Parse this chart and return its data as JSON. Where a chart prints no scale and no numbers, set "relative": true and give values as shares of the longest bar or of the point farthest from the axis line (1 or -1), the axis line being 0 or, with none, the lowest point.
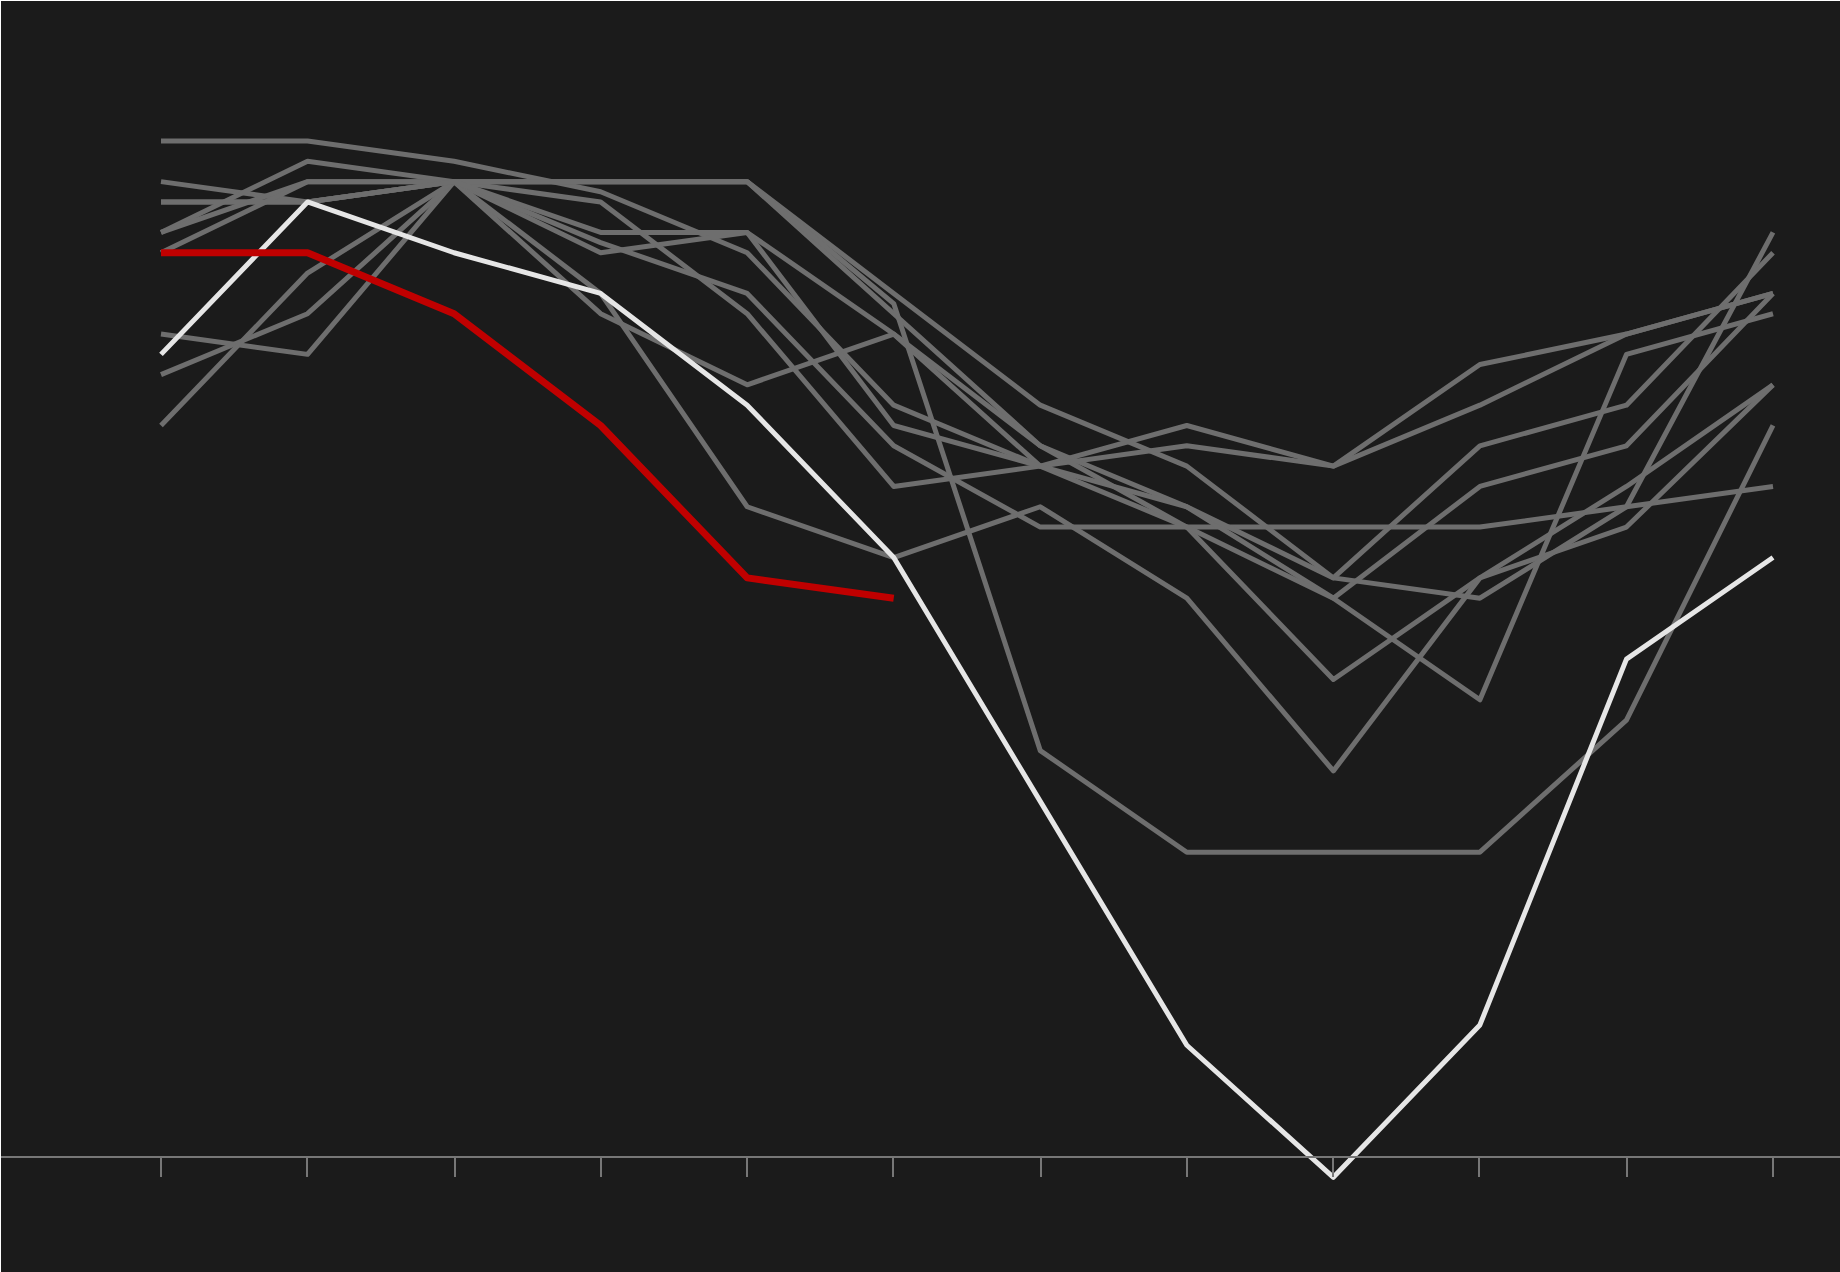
{
  "chart_data": {
    "type": "line",
    "relative": true,
    "grid": false,
    "categories": [
      null,
      null,
      null,
      null,
      null,
      null,
      null,
      null,
      null,
      null,
      null,
      null
    ],
    "series": [
      {
        "color": "#6e6e6e",
        "values": [
          1.0,
          1.0,
          0.98,
          0.95,
          0.89,
          0.74,
          0.68,
          0.62,
          0.62,
          0.62,
          0.64,
          0.66
        ]
      },
      {
        "color": "#6e6e6e",
        "values": [
          0.96,
          0.94,
          0.96,
          0.89,
          0.91,
          0.81,
          0.68,
          0.72,
          0.68,
          0.78,
          0.81,
          0.85
        ]
      },
      {
        "color": "#6e6e6e",
        "values": [
          0.94,
          0.94,
          0.96,
          0.96,
          0.96,
          0.85,
          0.74,
          0.68,
          0.57,
          0.7,
          0.74,
          0.89
        ]
      },
      {
        "color": "#6e6e6e",
        "values": [
          0.91,
          0.98,
          0.96,
          0.96,
          0.96,
          0.83,
          0.7,
          0.64,
          0.55,
          0.66,
          0.7,
          0.85
        ]
      },
      {
        "color": "#6e6e6e",
        "values": [
          0.81,
          0.79,
          0.96,
          0.83,
          0.76,
          0.81,
          0.7,
          0.62,
          0.47,
          0.57,
          0.62,
          0.76
        ]
      },
      {
        "color": "#6e6e6e",
        "values": [
          0.77,
          0.83,
          0.96,
          0.94,
          0.83,
          0.66,
          0.68,
          0.7,
          0.68,
          0.74,
          0.81,
          0.85
        ]
      },
      {
        "color": "#6e6e6e",
        "values": [
          0.72,
          0.87,
          0.96,
          0.85,
          0.64,
          0.59,
          0.64,
          0.55,
          0.38,
          0.57,
          0.66,
          0.76
        ]
      },
      {
        "color": "#6e6e6e",
        "values": [
          0.91,
          0.96,
          0.96,
          0.96,
          0.96,
          0.84,
          0.4,
          0.3,
          0.3,
          0.3,
          0.43,
          0.72
        ]
      },
      {
        "color": "#6e6e6e",
        "values": [
          0.89,
          0.96,
          0.96,
          0.9,
          0.85,
          0.7,
          0.62,
          0.62,
          0.55,
          0.45,
          0.79,
          0.83
        ]
      },
      {
        "color": "#6e6e6e",
        "values": [
          0.94,
          0.94,
          0.96,
          0.91,
          0.91,
          0.72,
          0.68,
          0.64,
          0.57,
          0.55,
          0.64,
          0.91
        ]
      },
      {
        "color": "#e6e6e6",
        "values": [
          0.79,
          0.94,
          0.89,
          0.85,
          0.74,
          0.59,
          0.35,
          0.11,
          -0.02,
          0.13,
          0.49,
          0.59
        ]
      },
      {
        "color": "#c00000",
        "values": [
          0.89,
          0.89,
          0.83,
          0.72,
          0.57,
          0.55,
          null,
          null,
          null,
          null,
          null,
          null
        ]
      }
    ]
  }
}
